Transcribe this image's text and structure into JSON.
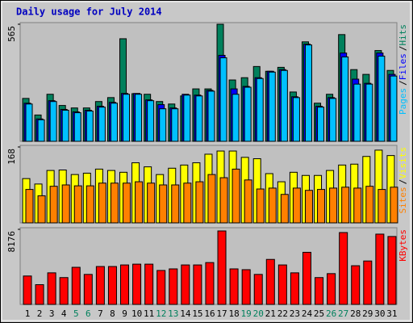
{
  "chart_data": [
    {
      "type": "bar",
      "title": "Daily usage for July 2014",
      "legend_separator": "/",
      "ylim": [
        0,
        565
      ],
      "yticks": [
        565
      ],
      "series": [
        {
          "name": "Hits",
          "color": "#00805c",
          "values": [
            207,
            127,
            227,
            173,
            161,
            161,
            192,
            211,
            495,
            230,
            227,
            192,
            180,
            219,
            253,
            253,
            565,
            296,
            307,
            361,
            338,
            357,
            238,
            480,
            184,
            227,
            515,
            346,
            323,
            438,
            342
          ]
        },
        {
          "name": "Files",
          "color": "#0000ff",
          "values": [
            184,
            108,
            196,
            154,
            142,
            150,
            169,
            188,
            231,
            231,
            200,
            177,
            161,
            227,
            223,
            246,
            415,
            253,
            265,
            307,
            338,
            346,
            215,
            469,
            169,
            211,
            426,
            300,
            280,
            426,
            323
          ]
        },
        {
          "name": "Pages",
          "color": "#00c0ff",
          "values": [
            180,
            104,
            192,
            150,
            138,
            146,
            165,
            184,
            227,
            227,
            196,
            157,
            157,
            223,
            219,
            242,
            403,
            227,
            261,
            303,
            334,
            342,
            211,
            465,
            165,
            207,
            407,
            276,
            276,
            411,
            315
          ]
        }
      ]
    },
    {
      "type": "bar",
      "legend_separator": "/",
      "ylim": [
        0,
        168
      ],
      "yticks": [
        168
      ],
      "series": [
        {
          "name": "Visits",
          "color": "#ffff00",
          "values": [
            98,
            86,
            116,
            117,
            107,
            110,
            119,
            116,
            112,
            133,
            124,
            107,
            121,
            128,
            133,
            152,
            159,
            159,
            145,
            142,
            109,
            91,
            112,
            105,
            105,
            116,
            128,
            130,
            147,
            161,
            149
          ]
        },
        {
          "name": "Sites",
          "color": "#ff8000",
          "values": [
            74,
            60,
            81,
            84,
            82,
            82,
            88,
            88,
            88,
            91,
            88,
            84,
            84,
            88,
            91,
            107,
            100,
            119,
            95,
            75,
            77,
            63,
            77,
            72,
            74,
            77,
            79,
            77,
            81,
            74,
            79
          ]
        }
      ]
    },
    {
      "type": "bar",
      "ylim": [
        0,
        8176
      ],
      "yticks": [
        8176
      ],
      "categories": [
        "1",
        "2",
        "3",
        "4",
        "5",
        "6",
        "7",
        "8",
        "9",
        "10",
        "11",
        "12",
        "13",
        "14",
        "15",
        "16",
        "17",
        "18",
        "19",
        "20",
        "21",
        "22",
        "23",
        "24",
        "25",
        "26",
        "27",
        "28",
        "29",
        "30",
        "31"
      ],
      "weekend": [
        false,
        false,
        false,
        false,
        true,
        true,
        false,
        false,
        false,
        false,
        false,
        true,
        true,
        false,
        false,
        false,
        false,
        false,
        true,
        true,
        false,
        false,
        false,
        false,
        false,
        true,
        true,
        false,
        false,
        false,
        false
      ],
      "weekend_color": "#00805c",
      "series": [
        {
          "name": "KBytes",
          "color": "#ff0000",
          "values": [
            3096,
            2150,
            3440,
            2924,
            4042,
            3268,
            4128,
            4128,
            4300,
            4386,
            4386,
            3698,
            3870,
            4300,
            4300,
            4558,
            8000,
            3870,
            3784,
            3268,
            4902,
            4300,
            3440,
            5676,
            2924,
            3354,
            7826,
            4214,
            4730,
            7654,
            7396
          ]
        }
      ]
    }
  ]
}
